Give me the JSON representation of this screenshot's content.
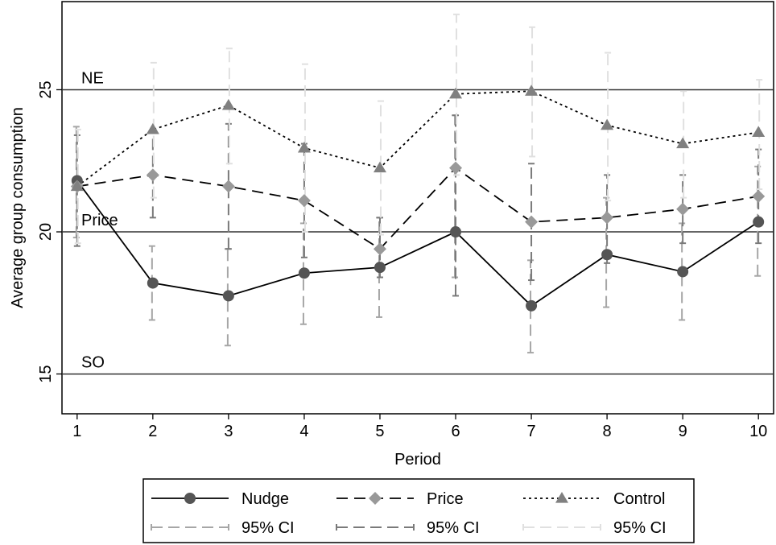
{
  "chart_data": {
    "type": "line",
    "title": "",
    "xlabel": "Period",
    "ylabel": "Average group consumption",
    "xlim": [
      0.8,
      10.2
    ],
    "ylim": [
      13.6,
      28.1
    ],
    "x": [
      1,
      2,
      3,
      4,
      5,
      6,
      7,
      8,
      9,
      10
    ],
    "x_ticks": [
      "1",
      "2",
      "3",
      "4",
      "5",
      "6",
      "7",
      "8",
      "9",
      "10"
    ],
    "y_ticks": [
      "15",
      "20",
      "25"
    ],
    "grid": false,
    "legend_position": "bottom",
    "reference_lines": [
      {
        "label": "NE",
        "value": 25
      },
      {
        "label": "Price",
        "value": 20
      },
      {
        "label": "SO",
        "value": 15
      }
    ],
    "series": [
      {
        "name": "Nudge",
        "line_style": "solid",
        "marker": "circle",
        "color": "#555555",
        "values": [
          21.8,
          18.2,
          17.75,
          18.55,
          18.75,
          20.0,
          17.4,
          19.2,
          18.6,
          20.35
        ],
        "ci_low": [
          19.8,
          16.9,
          16.0,
          16.75,
          17.0,
          18.4,
          15.75,
          17.35,
          16.9,
          18.45
        ],
        "ci_high": [
          23.7,
          19.5,
          19.4,
          20.3,
          20.5,
          24.1,
          19.0,
          21.2,
          20.3,
          22.3
        ]
      },
      {
        "name": "Price",
        "line_style": "dashed",
        "marker": "diamond",
        "color": "#999999",
        "values": [
          21.6,
          22.0,
          21.6,
          21.1,
          19.4,
          22.25,
          20.35,
          20.5,
          20.8,
          21.25
        ],
        "ci_low": [
          19.5,
          20.5,
          19.4,
          19.1,
          18.4,
          17.75,
          18.3,
          18.9,
          19.6,
          19.6
        ],
        "ci_high": [
          23.4,
          23.5,
          23.8,
          23.1,
          20.5,
          24.1,
          22.4,
          22.0,
          22.0,
          22.9
        ]
      },
      {
        "name": "Control",
        "line_style": "dotted",
        "marker": "triangle",
        "color": "#808080",
        "values": [
          21.6,
          23.6,
          24.45,
          22.95,
          22.25,
          24.85,
          24.95,
          23.75,
          23.1,
          23.5
        ],
        "ci_low": [
          19.6,
          21.2,
          22.4,
          20.0,
          19.9,
          22.0,
          22.65,
          21.1,
          21.2,
          21.5
        ],
        "ci_high": [
          23.6,
          25.95,
          26.45,
          25.9,
          24.6,
          27.65,
          27.2,
          26.3,
          24.95,
          25.35
        ]
      }
    ],
    "legend": [
      {
        "label": "Nudge",
        "series": 0,
        "kind": "line"
      },
      {
        "label": "Price",
        "series": 1,
        "kind": "line"
      },
      {
        "label": "Control",
        "series": 2,
        "kind": "line"
      },
      {
        "label": "95% CI",
        "series": 0,
        "kind": "ci",
        "color": "#a6a6a6"
      },
      {
        "label": "95% CI",
        "series": 1,
        "kind": "ci",
        "color": "#7a7a7a"
      },
      {
        "label": "95% CI",
        "series": 2,
        "kind": "ci",
        "color": "#e0e0e0"
      }
    ]
  }
}
